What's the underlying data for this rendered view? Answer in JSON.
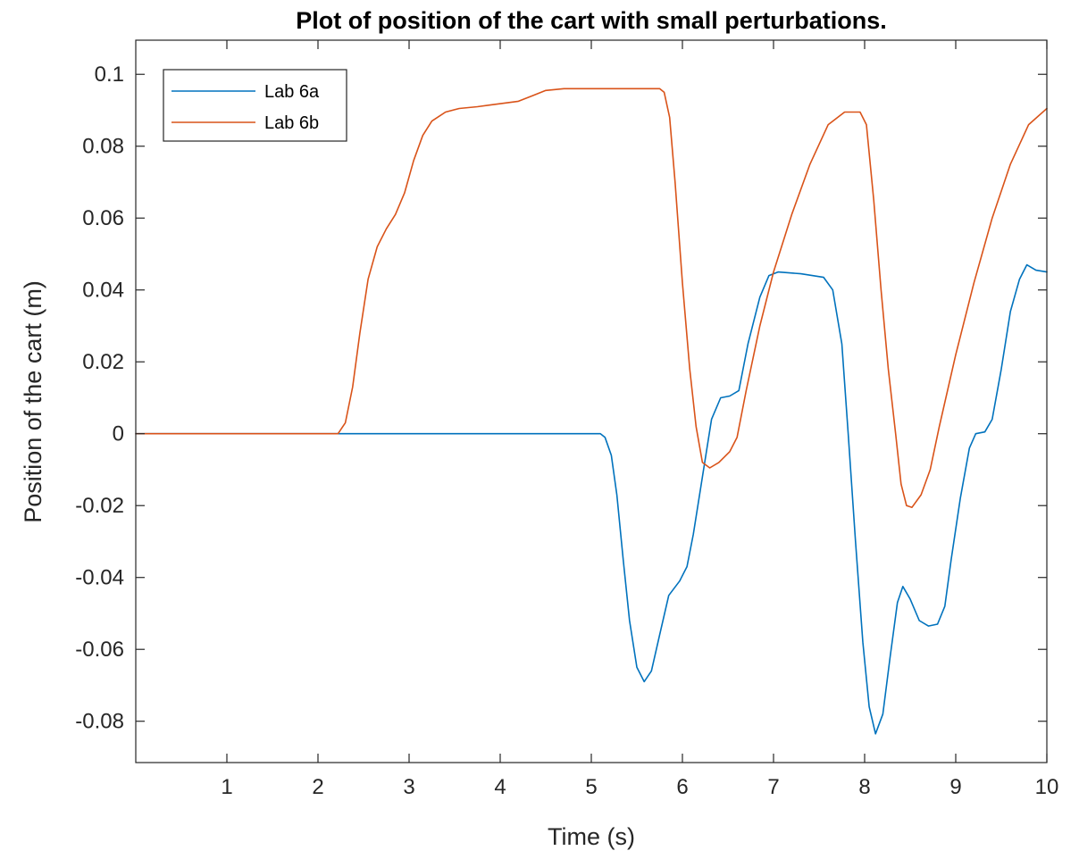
{
  "chart_data": {
    "type": "line",
    "title": "Plot of position of the cart with small perturbations.",
    "xlabel": "Time (s)",
    "ylabel": "Position of the cart (m)",
    "xlim": [
      0,
      10
    ],
    "ylim": [
      -0.0915,
      0.1095
    ],
    "x_ticks": [
      1,
      2,
      3,
      4,
      5,
      6,
      7,
      8,
      9,
      10
    ],
    "x_tick_labels": [
      "1",
      "2",
      "3",
      "4",
      "5",
      "6",
      "7",
      "8",
      "9",
      "10"
    ],
    "y_ticks": [
      -0.08,
      -0.06,
      -0.04,
      -0.02,
      0,
      0.02,
      0.04,
      0.06,
      0.08,
      0.1
    ],
    "y_tick_labels": [
      "-0.08",
      "-0.06",
      "-0.04",
      "-0.02",
      "0",
      "0.02",
      "0.04",
      "0.06",
      "0.08",
      "0.1"
    ],
    "grid": false,
    "legend_position": "top-left",
    "series": [
      {
        "name": "Lab 6a",
        "color": "#0072BD",
        "points": [
          [
            0,
            0
          ],
          [
            1,
            0
          ],
          [
            2,
            0
          ],
          [
            3,
            0
          ],
          [
            4,
            0
          ],
          [
            5,
            0
          ],
          [
            5.1,
            0
          ],
          [
            5.15,
            -0.001
          ],
          [
            5.22,
            -0.006
          ],
          [
            5.28,
            -0.017
          ],
          [
            5.35,
            -0.035
          ],
          [
            5.42,
            -0.052
          ],
          [
            5.5,
            -0.065
          ],
          [
            5.58,
            -0.069
          ],
          [
            5.66,
            -0.066
          ],
          [
            5.75,
            -0.056
          ],
          [
            5.85,
            -0.045
          ],
          [
            5.97,
            -0.041
          ],
          [
            6.05,
            -0.037
          ],
          [
            6.12,
            -0.028
          ],
          [
            6.22,
            -0.012
          ],
          [
            6.32,
            0.004
          ],
          [
            6.42,
            0.01
          ],
          [
            6.52,
            0.0105
          ],
          [
            6.62,
            0.012
          ],
          [
            6.72,
            0.025
          ],
          [
            6.85,
            0.038
          ],
          [
            6.95,
            0.044
          ],
          [
            7.05,
            0.045
          ],
          [
            7.3,
            0.0445
          ],
          [
            7.55,
            0.0435
          ],
          [
            7.65,
            0.04
          ],
          [
            7.75,
            0.025
          ],
          [
            7.82,
            0.0
          ],
          [
            7.9,
            -0.03
          ],
          [
            7.98,
            -0.058
          ],
          [
            8.05,
            -0.076
          ],
          [
            8.12,
            -0.0835
          ],
          [
            8.2,
            -0.078
          ],
          [
            8.28,
            -0.062
          ],
          [
            8.36,
            -0.047
          ],
          [
            8.42,
            -0.0425
          ],
          [
            8.5,
            -0.046
          ],
          [
            8.6,
            -0.052
          ],
          [
            8.7,
            -0.0535
          ],
          [
            8.8,
            -0.053
          ],
          [
            8.88,
            -0.048
          ],
          [
            8.95,
            -0.035
          ],
          [
            9.05,
            -0.018
          ],
          [
            9.15,
            -0.004
          ],
          [
            9.22,
            0.0
          ],
          [
            9.32,
            0.0005
          ],
          [
            9.4,
            0.004
          ],
          [
            9.5,
            0.018
          ],
          [
            9.6,
            0.034
          ],
          [
            9.7,
            0.043
          ],
          [
            9.78,
            0.047
          ],
          [
            9.88,
            0.0455
          ],
          [
            10,
            0.045
          ]
        ]
      },
      {
        "name": "Lab 6b",
        "color": "#D95319",
        "points": [
          [
            0,
            0
          ],
          [
            1,
            0
          ],
          [
            2,
            0
          ],
          [
            2.22,
            0
          ],
          [
            2.3,
            0.003
          ],
          [
            2.38,
            0.013
          ],
          [
            2.46,
            0.028
          ],
          [
            2.55,
            0.043
          ],
          [
            2.65,
            0.052
          ],
          [
            2.75,
            0.057
          ],
          [
            2.85,
            0.061
          ],
          [
            2.95,
            0.067
          ],
          [
            3.05,
            0.076
          ],
          [
            3.15,
            0.083
          ],
          [
            3.25,
            0.087
          ],
          [
            3.4,
            0.0895
          ],
          [
            3.55,
            0.0905
          ],
          [
            3.75,
            0.091
          ],
          [
            3.9,
            0.0915
          ],
          [
            4.05,
            0.092
          ],
          [
            4.2,
            0.0925
          ],
          [
            4.35,
            0.094
          ],
          [
            4.5,
            0.0955
          ],
          [
            4.7,
            0.096
          ],
          [
            5.2,
            0.096
          ],
          [
            5.75,
            0.096
          ],
          [
            5.8,
            0.095
          ],
          [
            5.86,
            0.088
          ],
          [
            5.92,
            0.07
          ],
          [
            6.0,
            0.042
          ],
          [
            6.08,
            0.018
          ],
          [
            6.15,
            0.002
          ],
          [
            6.22,
            -0.008
          ],
          [
            6.3,
            -0.0095
          ],
          [
            6.4,
            -0.008
          ],
          [
            6.52,
            -0.005
          ],
          [
            6.6,
            -0.001
          ],
          [
            6.7,
            0.012
          ],
          [
            6.85,
            0.03
          ],
          [
            7.0,
            0.045
          ],
          [
            7.2,
            0.061
          ],
          [
            7.4,
            0.075
          ],
          [
            7.6,
            0.086
          ],
          [
            7.78,
            0.0895
          ],
          [
            7.95,
            0.0895
          ],
          [
            8.02,
            0.086
          ],
          [
            8.1,
            0.065
          ],
          [
            8.18,
            0.04
          ],
          [
            8.26,
            0.018
          ],
          [
            8.34,
            0.0
          ],
          [
            8.4,
            -0.014
          ],
          [
            8.46,
            -0.02
          ],
          [
            8.52,
            -0.0205
          ],
          [
            8.62,
            -0.017
          ],
          [
            8.72,
            -0.01
          ],
          [
            8.82,
            0.002
          ],
          [
            9.0,
            0.022
          ],
          [
            9.2,
            0.042
          ],
          [
            9.4,
            0.06
          ],
          [
            9.6,
            0.075
          ],
          [
            9.8,
            0.086
          ],
          [
            10,
            0.0905
          ]
        ]
      }
    ]
  }
}
